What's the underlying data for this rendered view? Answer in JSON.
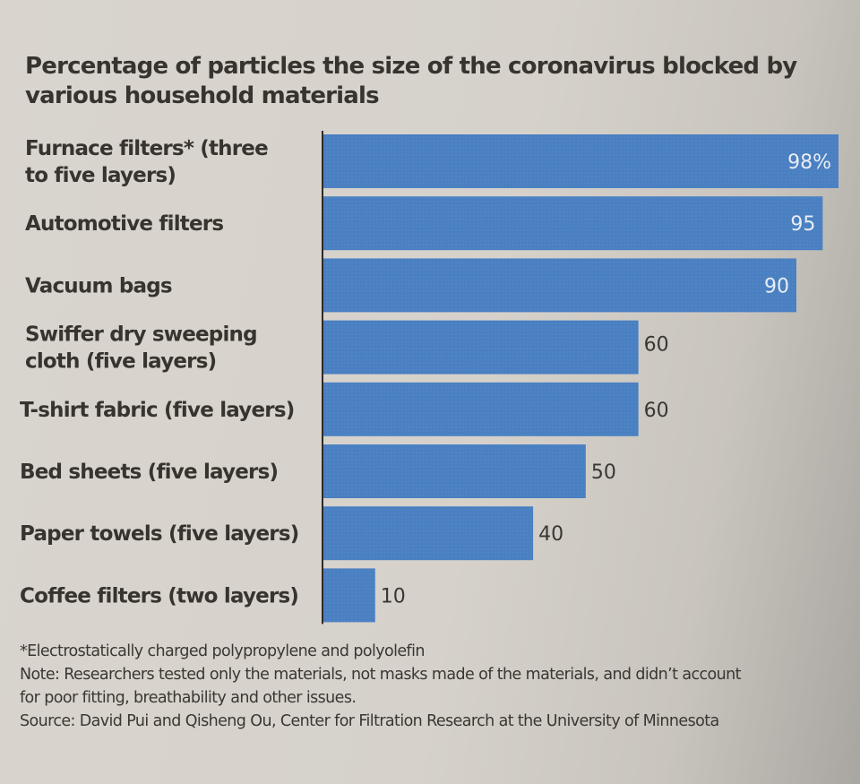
{
  "chart_data": {
    "type": "bar",
    "orientation": "horizontal",
    "title": "Percentage of particles the size of the coronavirus blocked by various household materials",
    "categories": [
      "Furnace filters* (three to five layers)",
      "Automotive filters",
      "Vacuum bags",
      "Swiffer dry sweeping cloth (five layers)",
      "T-shirt fabric (five layers)",
      "Bed sheets (five layers)",
      "Paper towels (five layers)",
      "Coffee filters (two layers)"
    ],
    "category_lines": [
      [
        "Furnace filters* (three",
        "to five layers)"
      ],
      [
        "Automotive filters"
      ],
      [
        "Vacuum bags"
      ],
      [
        "Swiffer dry sweeping",
        "cloth (five layers)"
      ],
      [
        "T-shirt fabric (five layers)"
      ],
      [
        "Bed sheets (five layers)"
      ],
      [
        "Paper towels (five layers)"
      ],
      [
        "Coffee filters (two layers)"
      ]
    ],
    "values": [
      98,
      95,
      90,
      60,
      60,
      50,
      40,
      10
    ],
    "value_labels": [
      "98%",
      "95",
      "90",
      "60",
      "60",
      "50",
      "40",
      "10"
    ],
    "unit": "%",
    "xlabel": "",
    "ylabel": "",
    "xlim": [
      0,
      98
    ],
    "grid": false,
    "legend": "none",
    "colors": {
      "bar": "#4a7fc1",
      "axis": "#2e2a26"
    }
  },
  "footnote": "*Electrostatically charged polypropylene and polyolefin",
  "note_lines": [
    "Note: Researchers tested only the materials, not masks made of the materials, and didn’t account",
    "for poor fitting, breathability and other issues."
  ],
  "source": "Source: David Pui and Qisheng Ou, Center for Filtration Research at the University of Minnesota"
}
